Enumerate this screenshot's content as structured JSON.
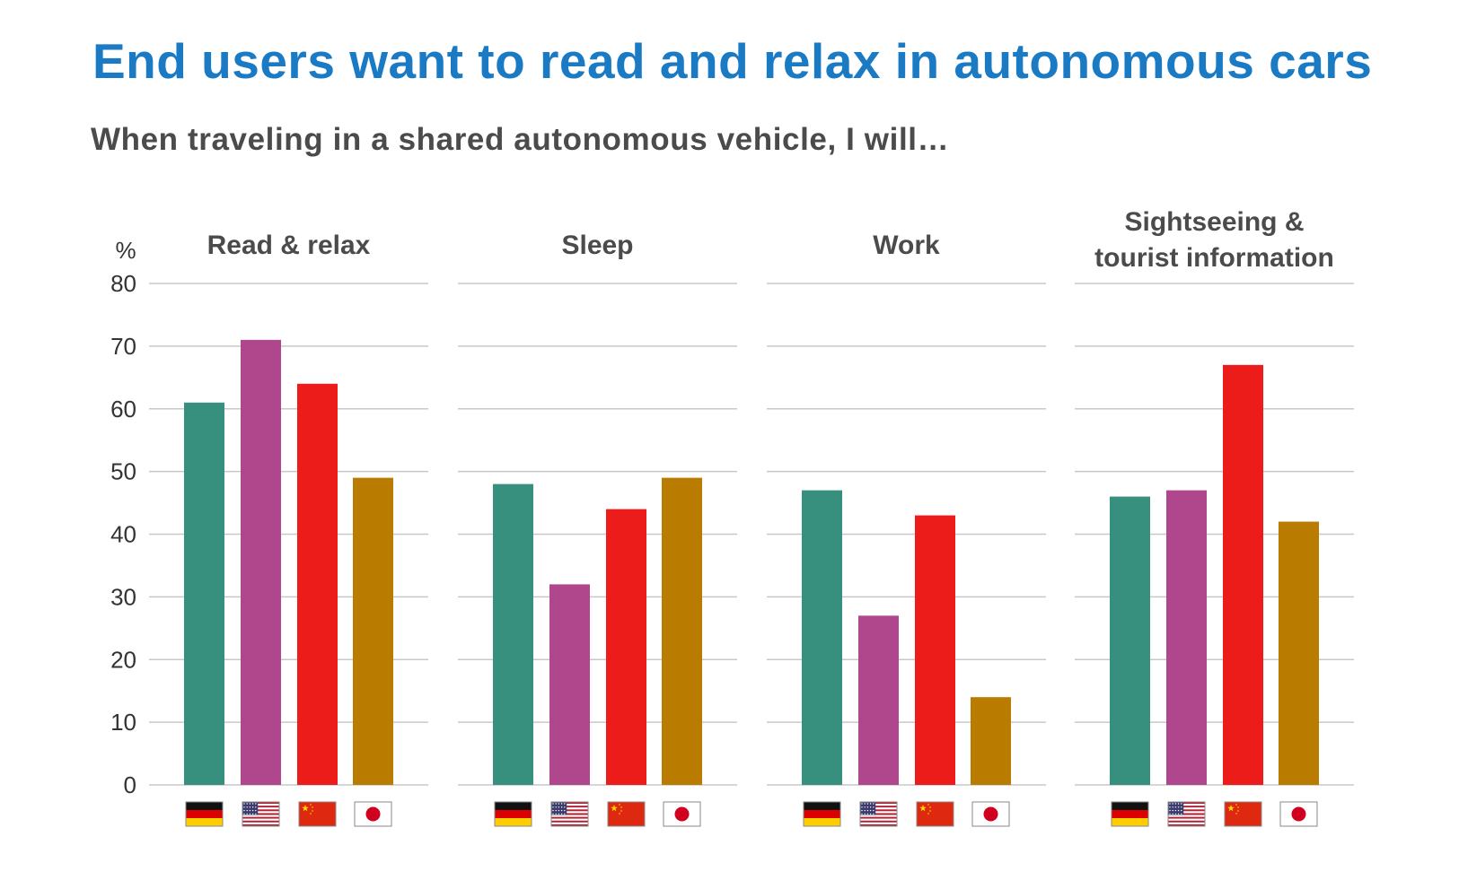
{
  "title": "End users want to read and relax in autonomous cars",
  "subtitle": "When traveling in a shared autonomous vehicle, I will…",
  "colors": {
    "title": "#1b7ac4",
    "subtitle": "#4b4b4b",
    "grid": "#c8c8c8",
    "axis_text": "#333333",
    "panel_title": "#4b4b4b"
  },
  "chart_data": {
    "type": "bar",
    "y_unit": "%",
    "ylim": [
      0,
      80
    ],
    "yticks": [
      0,
      10,
      20,
      30,
      40,
      50,
      60,
      70,
      80
    ],
    "grid": true,
    "countries": [
      {
        "flag": "germany-flag-icon",
        "color": "#378f7e"
      },
      {
        "flag": "usa-flag-icon",
        "color": "#b0478c"
      },
      {
        "flag": "china-flag-icon",
        "color": "#ec1c1a"
      },
      {
        "flag": "japan-flag-icon",
        "color": "#b97c00"
      }
    ],
    "panels": [
      {
        "title_lines": [
          "Read & relax"
        ],
        "values": [
          61,
          71,
          64,
          49
        ]
      },
      {
        "title_lines": [
          "Sleep"
        ],
        "values": [
          48,
          32,
          44,
          49
        ]
      },
      {
        "title_lines": [
          "Work"
        ],
        "values": [
          47,
          27,
          43,
          14
        ]
      },
      {
        "title_lines": [
          "Sightseeing &",
          "tourist information"
        ],
        "values": [
          46,
          47,
          67,
          42
        ]
      }
    ]
  }
}
